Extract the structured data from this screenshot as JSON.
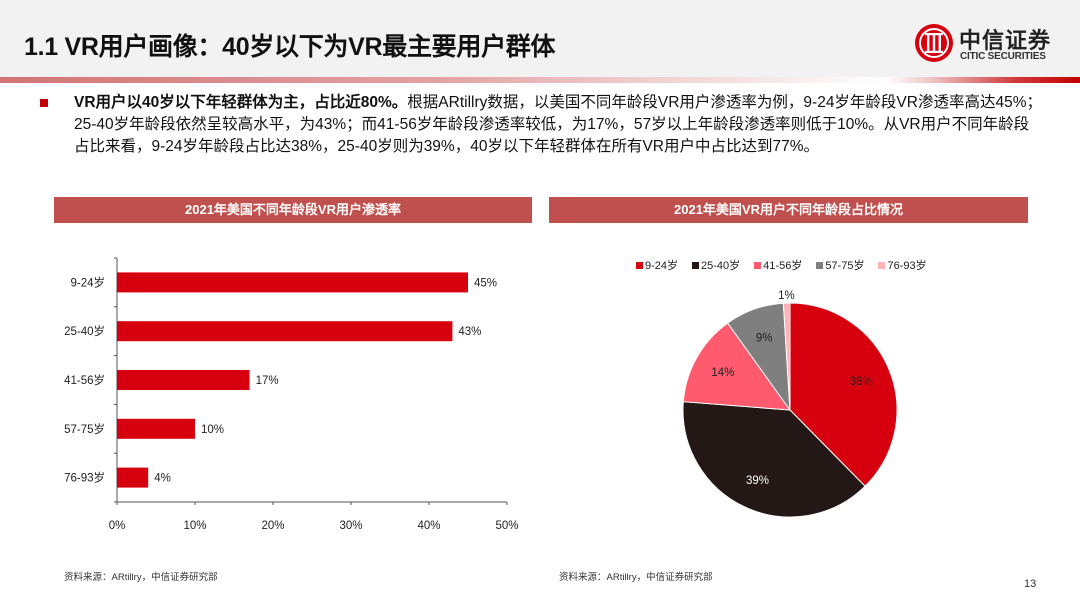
{
  "header": {
    "title": "1.1 VR用户画像：40岁以下为VR最主要用户群体",
    "logo_cn": "中信证券",
    "logo_en": "CITIC SECURITIES"
  },
  "summary": {
    "bold_lead": "VR用户以40岁以下年轻群体为主，占比近80%。",
    "body": "根据ARtillry数据，以美国不同年龄段VR用户渗透率为例，9-24岁年龄段VR渗透率高达45%；25-40岁年龄段依然呈较高水平，为43%；而41-56岁年龄段渗透率较低，为17%，57岁以上年龄段渗透率则低于10%。从VR用户不同年龄段占比来看，9-24岁年龄段占比达38%，25-40岁则为39%，40岁以下年轻群体在所有VR用户中占比达到77%。"
  },
  "charts": {
    "bar_title": "2021年美国不同年龄段VR用户渗透率",
    "pie_title": "2021年美国VR用户不同年龄段占比情况",
    "bar_source": "资料来源：ARtillry，中信证券研究部",
    "pie_source": "资料来源：ARtillry，中信证券研究部"
  },
  "footer": {
    "page_number": "13"
  },
  "colors": {
    "accent": "#c00000",
    "bar": "#d7000f",
    "title_band": "#c0504d",
    "pie": [
      "#d7000f",
      "#231815",
      "#ff5a6e",
      "#7f7f7f",
      "#ffb3b8"
    ]
  },
  "chart_data": [
    {
      "type": "bar",
      "orientation": "horizontal",
      "title": "2021年美国不同年龄段VR用户渗透率",
      "categories": [
        "9-24岁",
        "25-40岁",
        "41-56岁",
        "57-75岁",
        "76-93岁"
      ],
      "values": [
        45,
        43,
        17,
        10,
        4
      ],
      "value_labels": [
        "45%",
        "43%",
        "17%",
        "10%",
        "4%"
      ],
      "xlabel": "",
      "ylabel": "",
      "xlim": [
        0,
        50
      ],
      "xticks": [
        "0%",
        "10%",
        "20%",
        "30%",
        "40%",
        "50%"
      ],
      "grid": false,
      "legend": null
    },
    {
      "type": "pie",
      "title": "2021年美国VR用户不同年龄段占比情况",
      "categories": [
        "9-24岁",
        "25-40岁",
        "41-56岁",
        "57-75岁",
        "76-93岁"
      ],
      "values": [
        38,
        39,
        14,
        9,
        1
      ],
      "value_labels": [
        "38%",
        "39%",
        "14%",
        "9%",
        "1%"
      ],
      "legend_position": "top"
    }
  ]
}
